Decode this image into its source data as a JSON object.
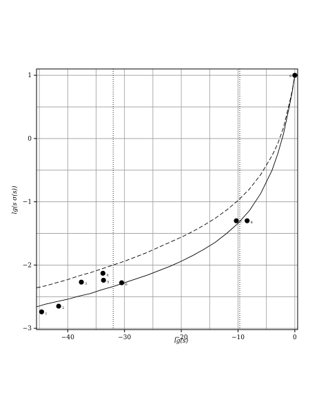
{
  "chart_data": {
    "type": "scatter",
    "xlabel": "lg(s)",
    "ylabel": "lg(s σ(s))",
    "xlim": [
      -45.5,
      0.5
    ],
    "ylim": [
      -3.02,
      1.1
    ],
    "grid": true,
    "x_ticks": [
      -40,
      -30,
      -20,
      -10,
      0
    ],
    "y_ticks": [
      -3,
      -2,
      -1,
      0,
      1
    ],
    "x_tick_labels": [
      "−40",
      "−30",
      "−20",
      "−10",
      "0"
    ],
    "y_tick_labels": [
      "−3",
      "−2",
      "−1",
      "0",
      "1"
    ],
    "vertical_reference_lines": [
      -32,
      -9.7
    ],
    "points": [
      {
        "label": "1",
        "x": -44.6,
        "y": -2.74
      },
      {
        "label": "2",
        "x": -41.6,
        "y": -2.65
      },
      {
        "label": "3",
        "x": -37.6,
        "y": -2.27
      },
      {
        "label": "4",
        "x": -33.8,
        "y": -2.13
      },
      {
        "label": "5",
        "x": -33.7,
        "y": -2.24
      },
      {
        "label": "6",
        "x": -30.5,
        "y": -2.28
      },
      {
        "label": "7",
        "x": -10.3,
        "y": -1.3
      },
      {
        "label": "8",
        "x": -8.4,
        "y": -1.3
      },
      {
        "label": "9",
        "x": 0,
        "y": 1
      }
    ],
    "series": [
      {
        "style": "solid",
        "x": [
          -45.5,
          -44,
          -42,
          -40,
          -38,
          -36,
          -34,
          -32,
          -30,
          -28,
          -26,
          -24,
          -22,
          -20,
          -18,
          -16,
          -14,
          -12,
          -10,
          -8,
          -6,
          -4,
          -3,
          -2,
          -1,
          -0.5,
          0
        ],
        "y": [
          -2.66,
          -2.62,
          -2.58,
          -2.54,
          -2.49,
          -2.45,
          -2.39,
          -2.34,
          -2.28,
          -2.22,
          -2.16,
          -2.09,
          -2.02,
          -1.94,
          -1.85,
          -1.75,
          -1.64,
          -1.5,
          -1.34,
          -1.14,
          -0.87,
          -0.5,
          -0.24,
          0.07,
          0.49,
          0.72,
          1.0
        ]
      },
      {
        "style": "dashed",
        "x": [
          -45.5,
          -44,
          -42,
          -40,
          -38,
          -36,
          -34,
          -32,
          -30,
          -28,
          -26,
          -24,
          -22,
          -20,
          -18,
          -16,
          -14,
          -12,
          -10,
          -8,
          -6,
          -4,
          -3,
          -2,
          -1,
          -0.5,
          0
        ],
        "y": [
          -2.36,
          -2.33,
          -2.28,
          -2.23,
          -2.17,
          -2.12,
          -2.06,
          -2.0,
          -1.94,
          -1.87,
          -1.8,
          -1.72,
          -1.64,
          -1.56,
          -1.47,
          -1.37,
          -1.26,
          -1.13,
          -0.98,
          -0.8,
          -0.57,
          -0.27,
          -0.08,
          0.17,
          0.54,
          0.74,
          1.0
        ]
      }
    ]
  }
}
